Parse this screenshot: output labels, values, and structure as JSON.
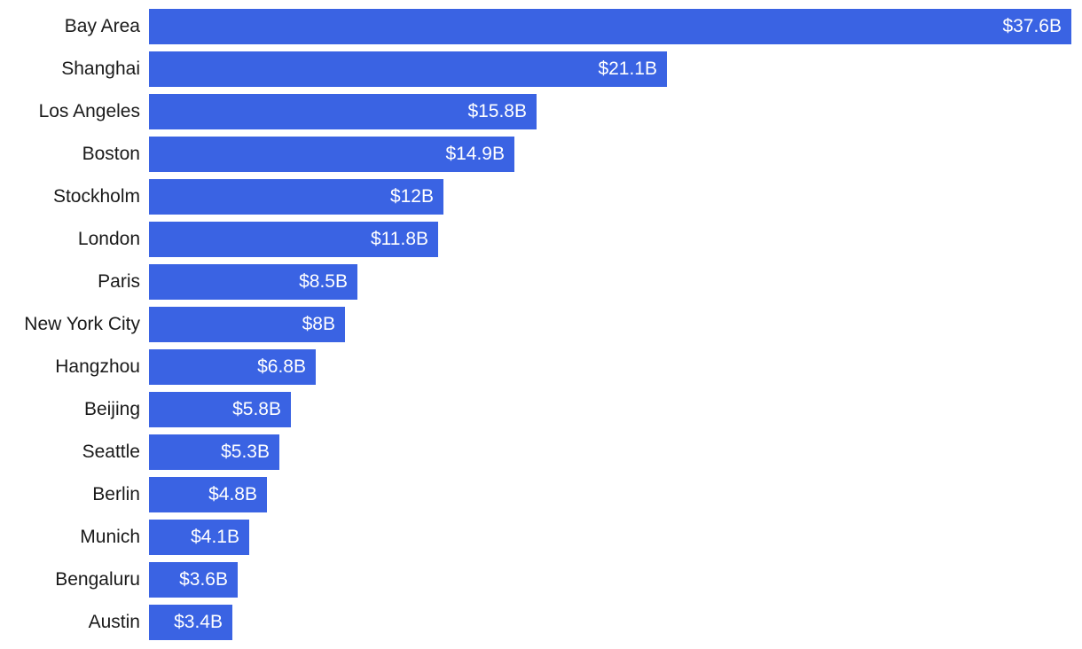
{
  "chart_data": {
    "type": "bar",
    "orientation": "horizontal",
    "categories": [
      "Bay Area",
      "Shanghai",
      "Los Angeles",
      "Boston",
      "Stockholm",
      "London",
      "Paris",
      "New York City",
      "Hangzhou",
      "Beijing",
      "Seattle",
      "Berlin",
      "Munich",
      "Bengaluru",
      "Austin"
    ],
    "values": [
      37.6,
      21.1,
      15.8,
      14.9,
      12,
      11.8,
      8.5,
      8,
      6.8,
      5.8,
      5.3,
      4.8,
      4.1,
      3.6,
      3.4
    ],
    "data_labels": [
      "$37.6B",
      "$21.1B",
      "$15.8B",
      "$14.9B",
      "$12B",
      "$11.8B",
      "$8.5B",
      "$8B",
      "$6.8B",
      "$5.8B",
      "$5.3B",
      "$4.8B",
      "$4.1B",
      "$3.6B",
      "$3.4B"
    ],
    "title": "",
    "xlabel": "",
    "ylabel": "",
    "xlim": [
      0,
      37.6
    ],
    "grid": false,
    "legend": "none",
    "colors": {
      "bar": "#3a63e3",
      "label_text": "#1a1a1a",
      "value_text": "#ffffff"
    }
  }
}
